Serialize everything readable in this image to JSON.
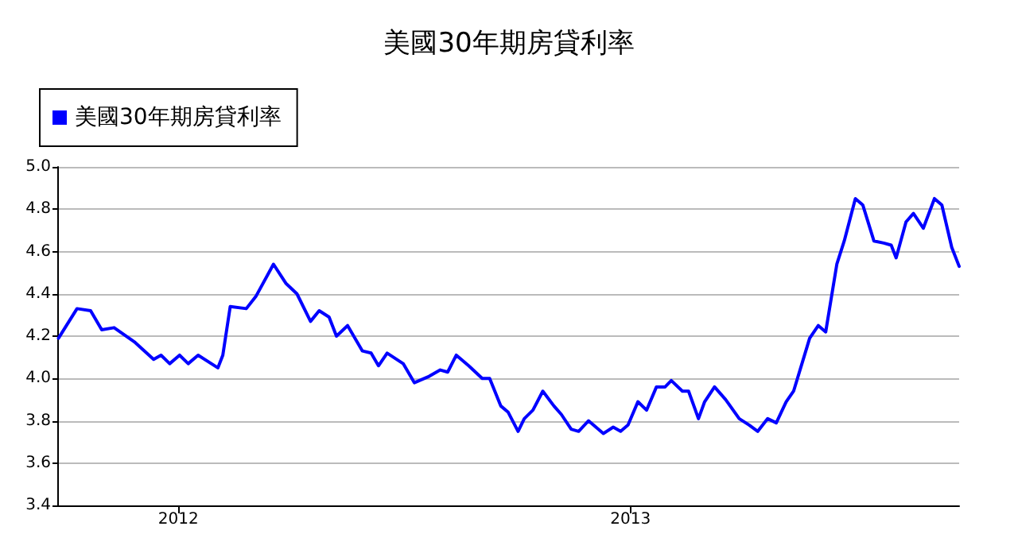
{
  "chart_data": {
    "type": "line",
    "title": "美國30年期房貸利率",
    "x": [
      "2011-09-26",
      "2011-10-11",
      "2011-10-22",
      "2011-10-31",
      "2011-11-10",
      "2011-11-27",
      "2011-12-12",
      "2011-12-18",
      "2011-12-25",
      "2012-01-02",
      "2012-01-09",
      "2012-01-17",
      "2012-02-02",
      "2012-02-06",
      "2012-02-12",
      "2012-02-25",
      "2012-03-04",
      "2012-03-18",
      "2012-03-28",
      "2012-04-06",
      "2012-04-17",
      "2012-04-24",
      "2012-05-02",
      "2012-05-08",
      "2012-05-17",
      "2012-05-29",
      "2012-06-05",
      "2012-06-11",
      "2012-06-18",
      "2012-07-01",
      "2012-07-10",
      "2012-07-22",
      "2012-07-31",
      "2012-08-06",
      "2012-08-13",
      "2012-08-23",
      "2012-09-03",
      "2012-09-09",
      "2012-09-18",
      "2012-09-24",
      "2012-10-02",
      "2012-10-07",
      "2012-10-14",
      "2012-10-22",
      "2012-10-31",
      "2012-11-06",
      "2012-11-14",
      "2012-11-20",
      "2012-11-28",
      "2012-12-10",
      "2012-12-18",
      "2012-12-24",
      "2012-12-30",
      "2013-01-07",
      "2013-01-14",
      "2013-01-22",
      "2013-01-29",
      "2013-02-03",
      "2013-02-12",
      "2013-02-17",
      "2013-02-25",
      "2013-03-02",
      "2013-03-10",
      "2013-03-19",
      "2013-03-30",
      "2013-04-07",
      "2013-04-14",
      "2013-04-22",
      "2013-04-29",
      "2013-05-07",
      "2013-05-13",
      "2013-05-26",
      "2013-06-02",
      "2013-06-08",
      "2013-06-17",
      "2013-06-23",
      "2013-07-02",
      "2013-07-08",
      "2013-07-17",
      "2013-07-25",
      "2013-07-31",
      "2013-08-04",
      "2013-08-12",
      "2013-08-18",
      "2013-08-26",
      "2013-09-04",
      "2013-09-10",
      "2013-09-18",
      "2013-09-24"
    ],
    "series": [
      {
        "name": "美國30年期房貸利率",
        "color": "#0000ff",
        "values": [
          4.19,
          4.33,
          4.32,
          4.23,
          4.24,
          4.17,
          4.09,
          4.11,
          4.07,
          4.11,
          4.07,
          4.11,
          4.05,
          4.11,
          4.34,
          4.33,
          4.39,
          4.54,
          4.45,
          4.4,
          4.27,
          4.32,
          4.29,
          4.2,
          4.25,
          4.13,
          4.12,
          4.06,
          4.12,
          4.07,
          3.98,
          4.01,
          4.04,
          4.03,
          4.11,
          4.06,
          4.0,
          4.0,
          3.87,
          3.84,
          3.75,
          3.81,
          3.85,
          3.94,
          3.87,
          3.83,
          3.76,
          3.75,
          3.8,
          3.74,
          3.77,
          3.75,
          3.78,
          3.89,
          3.85,
          3.96,
          3.96,
          3.99,
          3.94,
          3.94,
          3.81,
          3.89,
          3.96,
          3.9,
          3.81,
          3.78,
          3.75,
          3.81,
          3.79,
          3.89,
          3.94,
          4.19,
          4.25,
          4.22,
          4.54,
          4.65,
          4.85,
          4.82,
          4.65,
          4.64,
          4.63,
          4.57,
          4.74,
          4.78,
          4.71,
          4.85,
          4.82,
          4.62,
          4.53
        ]
      }
    ],
    "xlim": [
      "2011-09-25",
      "2013-09-24"
    ],
    "xticks": [
      {
        "value": "2012-01-01",
        "label": "2012"
      },
      {
        "value": "2013-01-01",
        "label": "2013"
      }
    ],
    "ylim": [
      3.4,
      5.0
    ],
    "yticks": [
      3.4,
      3.6,
      3.8,
      {
        "value": 4,
        "label": "4.0"
      },
      4.2,
      4.4,
      4.6,
      4.8,
      {
        "value": 5,
        "label": "5.0"
      }
    ],
    "grid": "y",
    "legend": "top left",
    "marker": "none",
    "line_style": "solid"
  }
}
